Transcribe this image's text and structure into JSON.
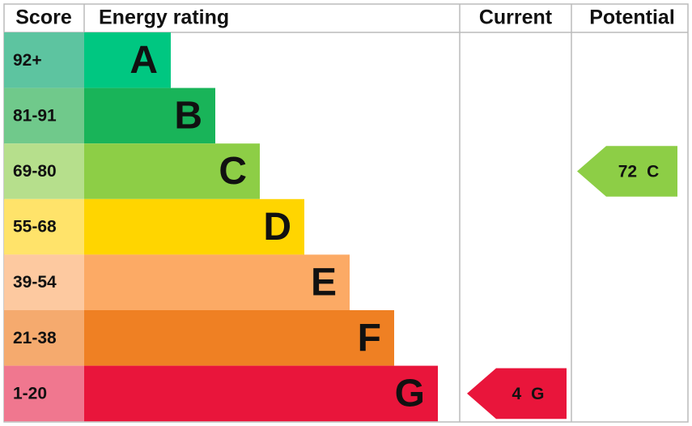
{
  "headers": {
    "score": "Score",
    "rating": "Energy rating",
    "current": "Current",
    "potential": "Potential"
  },
  "bands": [
    {
      "score": "92+",
      "letter": "A",
      "color": "#00c781",
      "score_color": "#5dc4a0"
    },
    {
      "score": "81-91",
      "letter": "B",
      "color": "#19b459",
      "score_color": "#70c98b"
    },
    {
      "score": "69-80",
      "letter": "C",
      "color": "#8dce46",
      "score_color": "#b6df8c"
    },
    {
      "score": "55-68",
      "letter": "D",
      "color": "#ffd500",
      "score_color": "#ffe36a"
    },
    {
      "score": "39-54",
      "letter": "E",
      "color": "#fcaa65",
      "score_color": "#fdc9a0"
    },
    {
      "score": "21-38",
      "letter": "F",
      "color": "#ef8023",
      "score_color": "#f5aa6e"
    },
    {
      "score": "1-20",
      "letter": "G",
      "color": "#e9153b",
      "score_color": "#f0778f"
    }
  ],
  "current": {
    "score": 4,
    "rating": "G"
  },
  "potential": {
    "score": 72,
    "rating": "C"
  }
}
